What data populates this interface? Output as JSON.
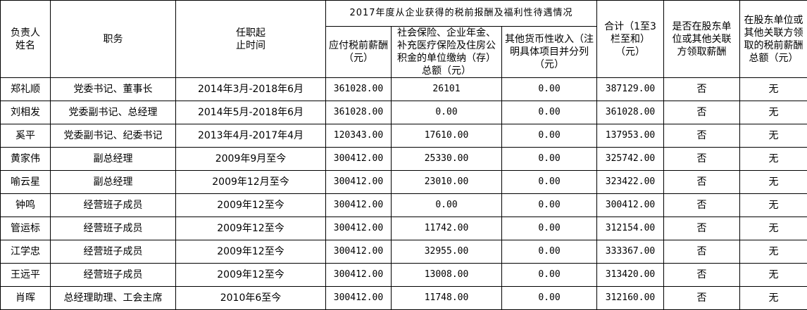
{
  "headers": {
    "name": "负责人姓名",
    "position": "职务",
    "term": "任职起止时间",
    "group_title": "2017年度从企业获得的税前报酬及福利性待遇情况",
    "salary": "应付税前薪酬（元）",
    "insurance": "社会保险、企业年金、补充医疗保险及住房公积金的单位缴纳（存）总额（元）",
    "other_income": "其他货币性收入（注明具体项目并分列（元）",
    "total": "合计（1至3栏至和）（元）",
    "paid_by_shareholder": "是否在股东单位或其他关联方领取薪酬",
    "shareholder_total": "在股东单位或其他关联方领取的税前薪酬总额（元）"
  },
  "rows": [
    {
      "name": "郑礼顺",
      "position": "党委书记、董事长",
      "term": "2014年3月-2018年6月",
      "salary": "361028.00",
      "insurance": "26101",
      "other": "0.00",
      "total": "387129.00",
      "paid": "否",
      "shareholder_total": "无"
    },
    {
      "name": "刘相发",
      "position": "党委副书记、总经理",
      "term": "2014年5月-2018年6月",
      "salary": "361028.00",
      "insurance": "0.00",
      "other": "0.00",
      "total": "361028.00",
      "paid": "否",
      "shareholder_total": "无"
    },
    {
      "name": "奚平",
      "position": "党委副书记、纪委书记",
      "term": "2013年4月-2017年4月",
      "salary": "120343.00",
      "insurance": "17610.00",
      "other": "0.00",
      "total": "137953.00",
      "paid": "否",
      "shareholder_total": "无"
    },
    {
      "name": "黄家伟",
      "position": "副总经理",
      "term": "2009年9月至今",
      "salary": "300412.00",
      "insurance": "25330.00",
      "other": "0.00",
      "total": "325742.00",
      "paid": "否",
      "shareholder_total": "无"
    },
    {
      "name": "喻云星",
      "position": "副总经理",
      "term": "2009年12月至今",
      "salary": "300412.00",
      "insurance": "23010.00",
      "other": "0.00",
      "total": "323422.00",
      "paid": "否",
      "shareholder_total": "无"
    },
    {
      "name": "钟鸣",
      "position": "经营班子成员",
      "term": "2009年12至今",
      "salary": "300412.00",
      "insurance": "0.00",
      "other": "0.00",
      "total": "300412.00",
      "paid": "否",
      "shareholder_total": "无"
    },
    {
      "name": "管运标",
      "position": "经营班子成员",
      "term": "2009年12至今",
      "salary": "300412.00",
      "insurance": "11742.00",
      "other": "0.00",
      "total": "312154.00",
      "paid": "否",
      "shareholder_total": "无"
    },
    {
      "name": "江学忠",
      "position": "经营班子成员",
      "term": "2009年12至今",
      "salary": "300412.00",
      "insurance": "32955.00",
      "other": "0.00",
      "total": "333367.00",
      "paid": "否",
      "shareholder_total": "无"
    },
    {
      "name": "王远平",
      "position": "经营班子成员",
      "term": "2009年12至今",
      "salary": "300412.00",
      "insurance": "13008.00",
      "other": "0.00",
      "total": "313420.00",
      "paid": "否",
      "shareholder_total": "无"
    },
    {
      "name": "肖晖",
      "position": "总经理助理、工会主席",
      "term": "2010年6至今",
      "salary": "300412.00",
      "insurance": "11748.00",
      "other": "0.00",
      "total": "312160.00",
      "paid": "否",
      "shareholder_total": "无"
    }
  ]
}
